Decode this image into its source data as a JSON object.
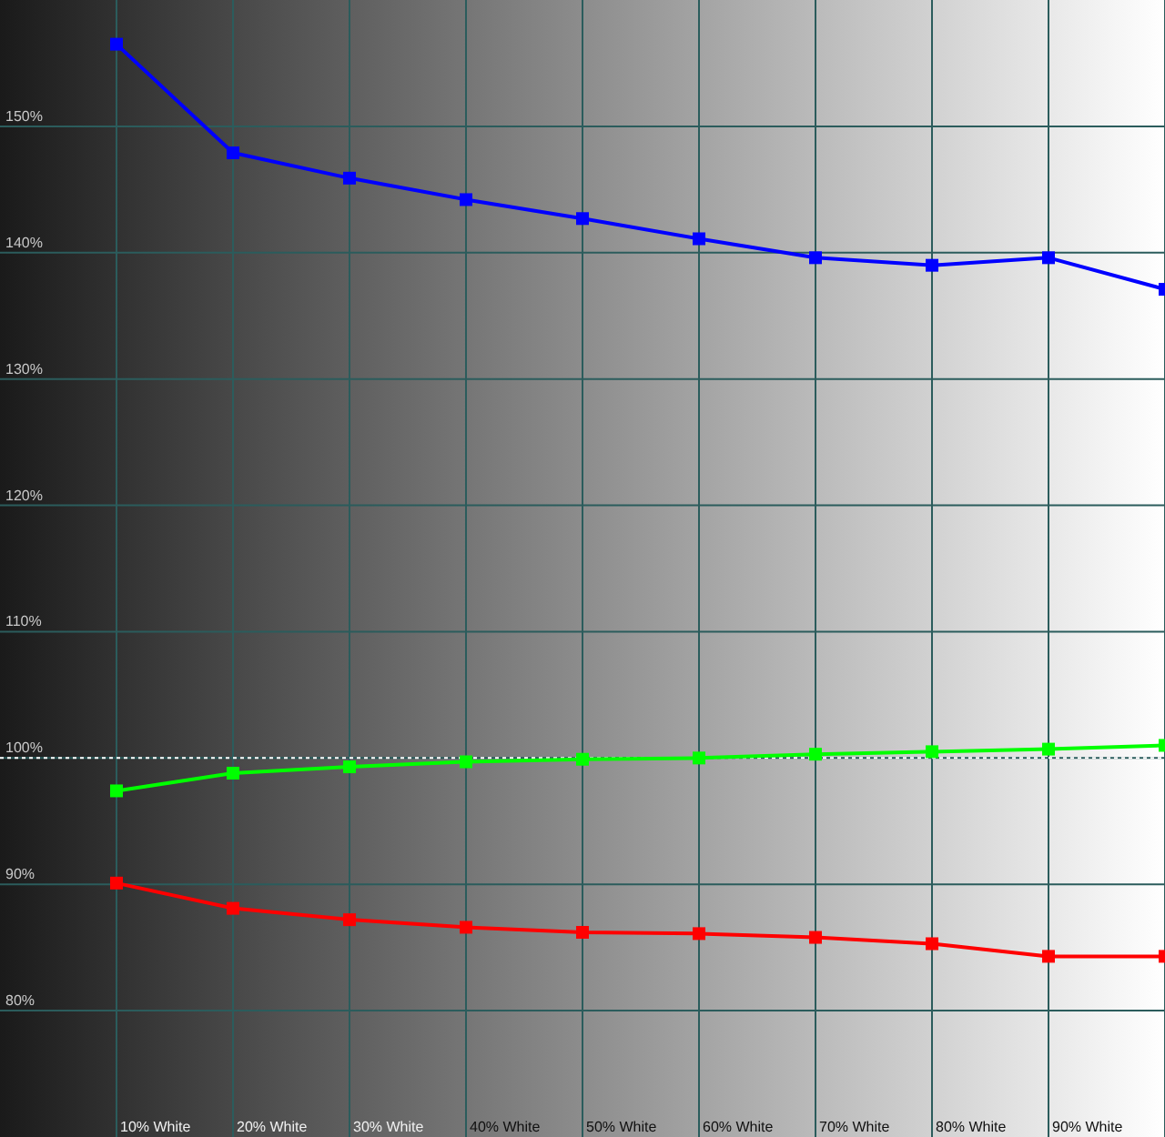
{
  "chart_data": {
    "type": "line",
    "categories": [
      "10% White",
      "20% White",
      "30% White",
      "40% White",
      "50% White",
      "60% White",
      "70% White",
      "80% White",
      "90% White",
      null
    ],
    "series": [
      {
        "color": "#0000ff",
        "values": [
          156.5,
          147.9,
          145.9,
          144.2,
          142.7,
          141.1,
          139.6,
          139.0,
          139.6,
          137.1
        ]
      },
      {
        "color": "#00ff00",
        "values": [
          97.4,
          98.8,
          99.3,
          99.7,
          99.9,
          100.0,
          100.3,
          100.5,
          100.7,
          101.0
        ]
      },
      {
        "color": "#ff0000",
        "values": [
          90.1,
          88.1,
          87.2,
          86.6,
          86.2,
          86.1,
          85.8,
          85.3,
          84.3,
          84.3
        ]
      }
    ],
    "ylim": [
      70,
      160
    ],
    "yticks": [
      {
        "value": 80,
        "label": "80%"
      },
      {
        "value": 90,
        "label": "90%"
      },
      {
        "value": 100,
        "label": "100%"
      },
      {
        "value": 110,
        "label": "110%"
      },
      {
        "value": 120,
        "label": "120%"
      },
      {
        "value": 130,
        "label": "130%"
      },
      {
        "value": 140,
        "label": "140%"
      },
      {
        "value": 150,
        "label": "150%"
      }
    ],
    "ref_lines": [
      {
        "axis": "y",
        "value": 100,
        "color": "#ffffff",
        "line_style": "dotted"
      }
    ],
    "grid": true,
    "marker": "square",
    "line_style": "solid"
  }
}
